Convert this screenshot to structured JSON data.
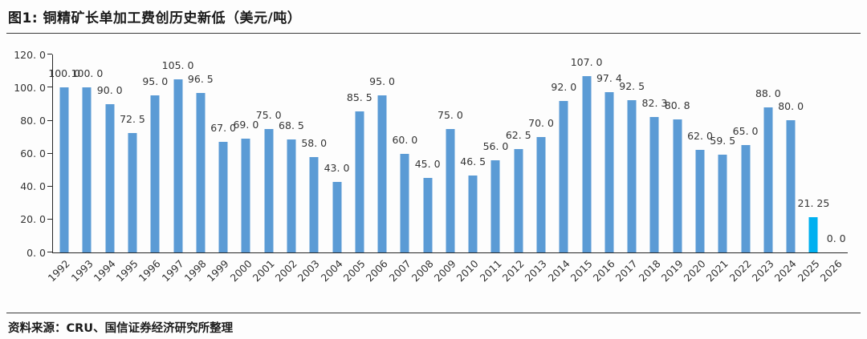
{
  "figure": {
    "title": "图1: 铜精矿长单加工费创历史新低（美元/吨）",
    "source": "资料来源：CRU、国信证券经济研究所整理"
  },
  "chart_data": {
    "type": "bar",
    "title": "铜精矿长单加工费创历史新低（美元/吨）",
    "categories": [
      "1992",
      "1993",
      "1994",
      "1995",
      "1996",
      "1997",
      "1998",
      "1999",
      "2000",
      "2001",
      "2002",
      "2003",
      "2004",
      "2005",
      "2006",
      "2007",
      "2008",
      "2009",
      "2010",
      "2011",
      "2012",
      "2013",
      "2014",
      "2015",
      "2016",
      "2017",
      "2018",
      "2019",
      "2020",
      "2021",
      "2022",
      "2023",
      "2024",
      "2025",
      "2026"
    ],
    "values": [
      100.0,
      100.0,
      90.0,
      72.5,
      95.0,
      105.0,
      96.5,
      67.0,
      69.0,
      75.0,
      68.5,
      58.0,
      43.0,
      85.5,
      95.0,
      60.0,
      45.0,
      75.0,
      46.5,
      56.0,
      62.5,
      70.0,
      92.0,
      107.0,
      97.4,
      92.5,
      82.3,
      80.8,
      62.0,
      59.5,
      65.0,
      88.0,
      80.0,
      21.25,
      0.0
    ],
    "value_labels": [
      "100. 0",
      "100. 0",
      "90. 0",
      "72. 5",
      "95. 0",
      "105. 0",
      "96. 5",
      "67. 0",
      "69. 0",
      "75. 0",
      "68. 5",
      "58. 0",
      "43. 0",
      "85. 5",
      "95. 0",
      "60. 0",
      "45. 0",
      "75. 0",
      "46. 5",
      "56. 0",
      "62. 5",
      "70. 0",
      "92. 0",
      "107. 0",
      "97. 4",
      "92. 5",
      "82. 3",
      "80. 8",
      "62. 0",
      "59. 5",
      "65. 0",
      "88. 0",
      "80. 0",
      "21. 25",
      "0. 0"
    ],
    "xlabel": "",
    "ylabel": "",
    "ylim": [
      0,
      120
    ],
    "ytick_labels": [
      "120. 0",
      "100. 0",
      "80. 0",
      "60. 0",
      "40. 0",
      "20. 0",
      "0. 0"
    ],
    "grid": "off",
    "legend": "none",
    "bar_color": "#5B9BD5",
    "highlight_bar": {
      "category": "2025",
      "color": "#00B0F0"
    }
  }
}
